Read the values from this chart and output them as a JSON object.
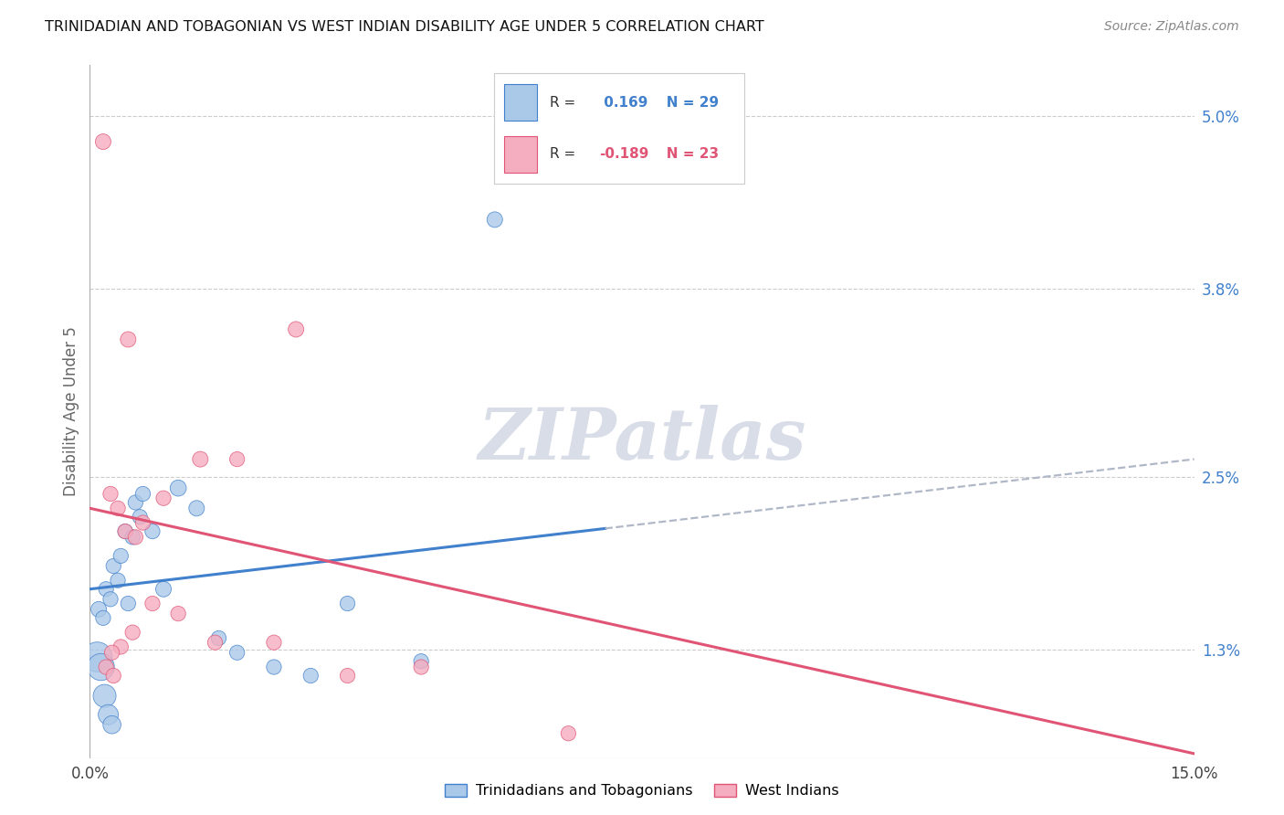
{
  "title": "TRINIDADIAN AND TOBAGONIAN VS WEST INDIAN DISABILITY AGE UNDER 5 CORRELATION CHART",
  "source": "Source: ZipAtlas.com",
  "ylabel": "Disability Age Under 5",
  "ytick_values": [
    1.3,
    2.5,
    3.8,
    5.0
  ],
  "xmin": 0.0,
  "xmax": 15.0,
  "ymin": 0.55,
  "ymax": 5.35,
  "legend_label1": "Trinidadians and Tobagonians",
  "legend_label2": "West Indians",
  "r1": 0.169,
  "n1": 29,
  "r2": -0.189,
  "n2": 23,
  "color1": "#aac8e8",
  "color2": "#f5adc0",
  "line_color1": "#4080cc",
  "line_color2": "#e05575",
  "trendline_color": "#b0b8c8",
  "blue_line": {
    "x0": 0.0,
    "y0": 1.72,
    "x1": 15.0,
    "y1": 2.62
  },
  "blue_solid_end": 7.0,
  "pink_line": {
    "x0": 0.0,
    "y0": 2.28,
    "x1": 15.0,
    "y1": 0.58
  },
  "scatter1_x": [
    0.12,
    0.18,
    0.22,
    0.28,
    0.32,
    0.38,
    0.42,
    0.48,
    0.52,
    0.58,
    0.62,
    0.68,
    0.72,
    0.85,
    1.0,
    1.2,
    1.45,
    1.75,
    2.0,
    2.5,
    3.0,
    3.5,
    4.5,
    5.5,
    0.1,
    0.15,
    0.2,
    0.25,
    0.3
  ],
  "scatter1_y": [
    1.58,
    1.52,
    1.72,
    1.65,
    1.88,
    1.78,
    1.95,
    2.12,
    1.62,
    2.08,
    2.32,
    2.22,
    2.38,
    2.12,
    1.72,
    2.42,
    2.28,
    1.38,
    1.28,
    1.18,
    1.12,
    1.62,
    1.22,
    4.28,
    1.25,
    1.18,
    0.98,
    0.85,
    0.78
  ],
  "scatter1_size": [
    60,
    55,
    55,
    55,
    55,
    55,
    55,
    55,
    55,
    55,
    55,
    55,
    55,
    55,
    60,
    65,
    60,
    55,
    55,
    55,
    55,
    55,
    55,
    60,
    220,
    180,
    130,
    100,
    80
  ],
  "scatter2_x": [
    0.18,
    0.28,
    0.38,
    0.48,
    0.52,
    0.62,
    0.72,
    0.85,
    1.0,
    1.2,
    1.5,
    1.7,
    2.0,
    2.5,
    2.8,
    3.5,
    4.5,
    6.5,
    0.22,
    0.32,
    0.42,
    0.58,
    0.3
  ],
  "scatter2_y": [
    4.82,
    2.38,
    2.28,
    2.12,
    3.45,
    2.08,
    2.18,
    1.62,
    2.35,
    1.55,
    2.62,
    1.35,
    2.62,
    1.35,
    3.52,
    1.12,
    1.18,
    0.72,
    1.18,
    1.12,
    1.32,
    1.42,
    1.28
  ],
  "scatter2_size": [
    60,
    55,
    55,
    55,
    60,
    55,
    55,
    55,
    55,
    55,
    60,
    55,
    55,
    55,
    60,
    55,
    55,
    55,
    55,
    55,
    55,
    55,
    55
  ],
  "watermark": "ZIPatlas",
  "background_color": "#ffffff",
  "grid_color": "#cccccc"
}
